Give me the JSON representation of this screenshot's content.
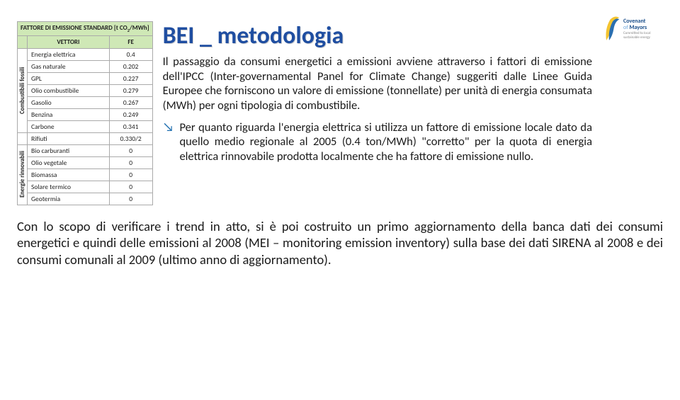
{
  "logo": {
    "line1": "Covenant",
    "line2_light": "of",
    "line2_bold": "Mayors",
    "tagline": "Committed to local sustainable energy"
  },
  "title": "BEI _ metodologia",
  "table": {
    "header_main": "FATTORE DI EMISSIONE STANDARD [t CO",
    "header_sub": "2",
    "header_tail": "/MWh]",
    "col1": "VETTORI",
    "col2": "FE",
    "group1_label": "Combustibili fossili",
    "group2_label": "Energie rinnovabili",
    "rows_top": [
      {
        "name": "Energia elettrica",
        "val": "0.4"
      },
      {
        "name": "Gas naturale",
        "val": "0.202"
      },
      {
        "name": "GPL",
        "val": "0.227"
      },
      {
        "name": "Olio combustibile",
        "val": "0.279"
      },
      {
        "name": "Gasolio",
        "val": "0.267"
      },
      {
        "name": "Benzina",
        "val": "0.249"
      },
      {
        "name": "Carbone",
        "val": "0.341"
      }
    ],
    "rows_mid": [
      {
        "name": "Rifiuti",
        "val": "0.330/2"
      }
    ],
    "rows_bot": [
      {
        "name": "Bio carburanti",
        "val": "0"
      },
      {
        "name": "Olio vegetale",
        "val": "0"
      },
      {
        "name": "Biomassa",
        "val": "0"
      },
      {
        "name": "Solare termico",
        "val": "0"
      },
      {
        "name": "Geotermia",
        "val": "0"
      }
    ]
  },
  "para1": "Il passaggio da consumi energetici a emissioni avviene attraverso i fattori di emissione dell'IPCC (Inter-governamental Panel for Climate Change) suggeriti dalle Linee Guida Europee che forniscono un valore di emissione (tonnellate) per unità di energia consumata (MWh) per ogni tipologia di combustibile.",
  "bullet1": "Per quanto riguarda l'energia elettrica si utilizza un fattore di emissione locale dato da quello medio regionale al 2005 (0.4 ton/MWh) \"corretto\" per la quota di energia elettrica rinnovabile prodotta localmente che ha fattore di emissione nullo.",
  "para2": "Con lo scopo di verificare i trend in atto, si è poi costruito un primo aggiornamento della banca dati dei consumi energetici e quindi delle emissioni al 2008 (MEI – monitoring emission inventory) sulla base dei dati SIRENA al 2008 e dei consumi comunali al 2009 (ultimo anno di aggiornamento).",
  "colors": {
    "title_color": "#1f4ea1",
    "table_header_bg": "#cfe8b6",
    "bullet_arrow": "#1f6fb0"
  }
}
